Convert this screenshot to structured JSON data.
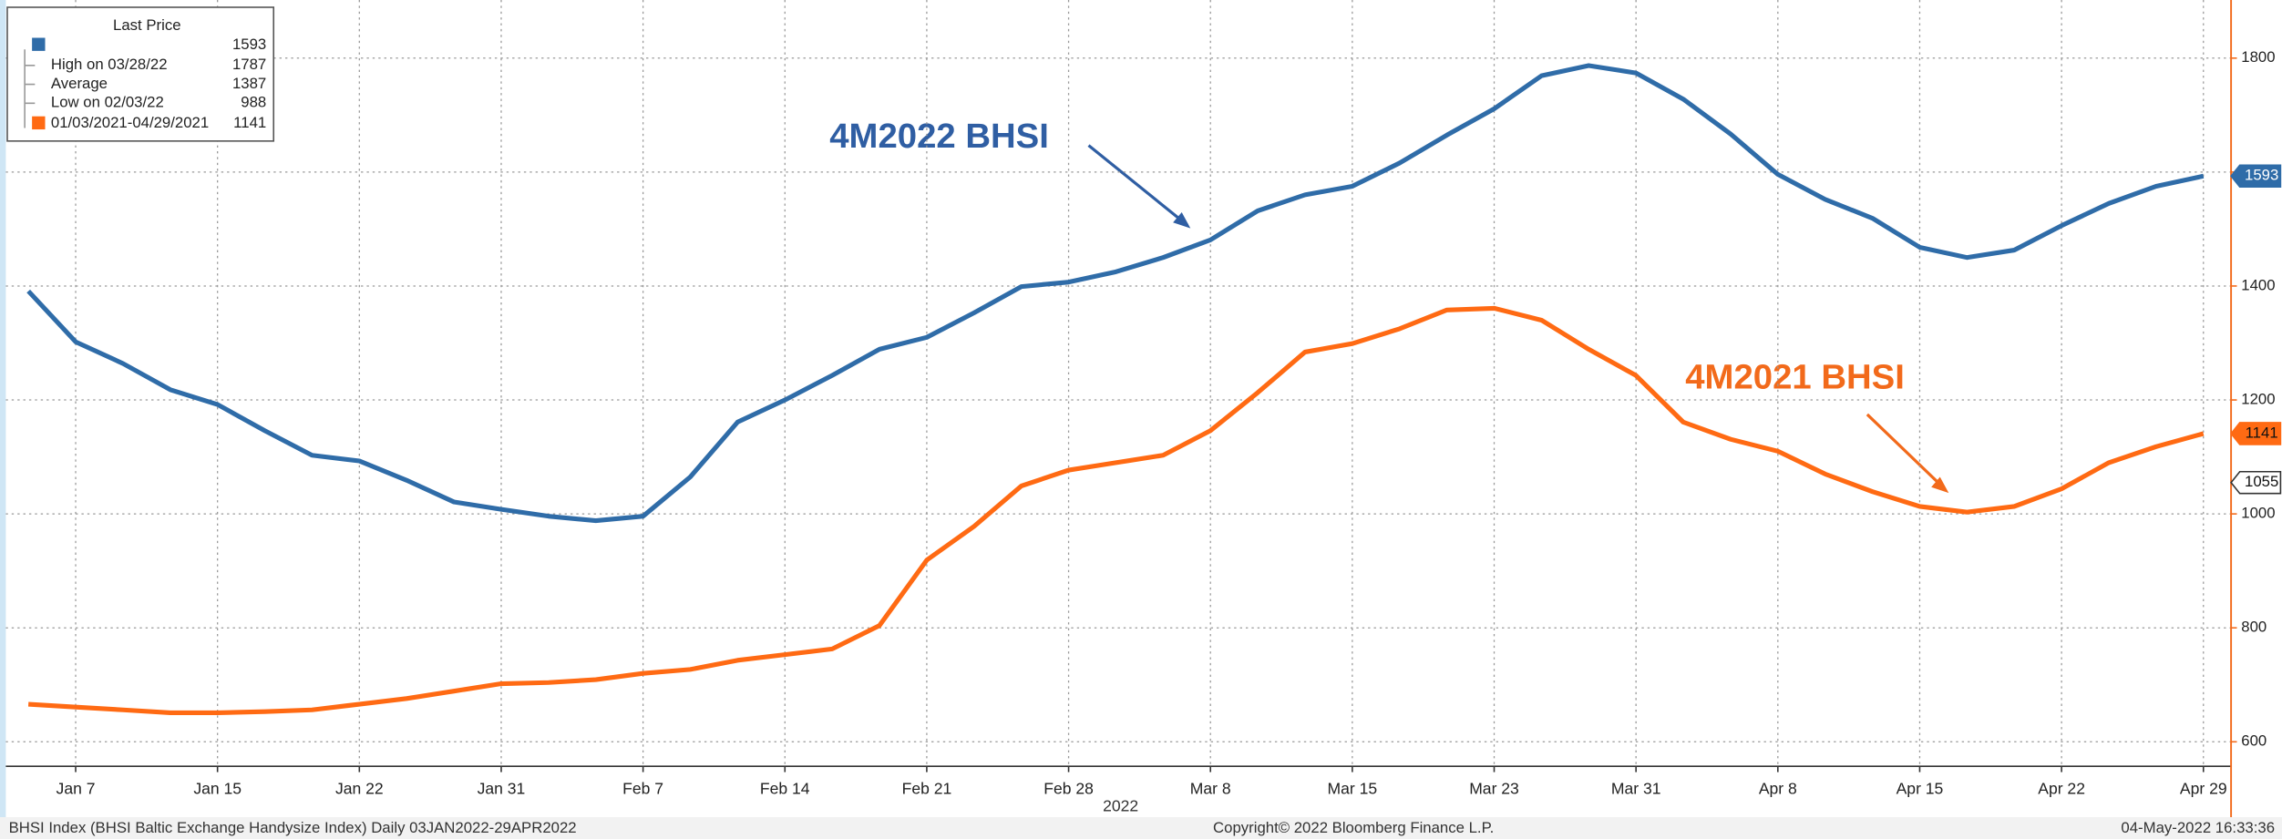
{
  "chart_data": {
    "type": "line",
    "categories": [
      null,
      "Jan 7",
      null,
      null,
      "Jan 15",
      null,
      null,
      "Jan 22",
      null,
      null,
      "Jan 31",
      null,
      null,
      "Feb 7",
      null,
      null,
      "Feb 14",
      null,
      null,
      "Feb 21",
      null,
      null,
      "Feb 28",
      null,
      null,
      "Mar 8",
      null,
      null,
      "Mar 15",
      null,
      null,
      "Mar 23",
      null,
      null,
      "Mar 31",
      null,
      null,
      "Apr 8",
      null,
      null,
      "Apr 15",
      null,
      null,
      "Apr 22",
      null,
      null,
      "Apr 29"
    ],
    "series": [
      {
        "name": "4M2022 BHSI",
        "color": "#2f6ca8",
        "values": [
          1391,
          1302,
          1264,
          1218,
          1192,
          1146,
          1103,
          1093,
          1059,
          1021,
          1008,
          996,
          988,
          996,
          1065,
          1161,
          1200,
          1243,
          1289,
          1310,
          1353,
          1399,
          1407,
          1425,
          1450,
          1481,
          1532,
          1560,
          1575,
          1616,
          1665,
          1711,
          1769,
          1787,
          1774,
          1728,
          1667,
          1596,
          1552,
          1519,
          1468,
          1450,
          1463,
          1506,
          1545,
          1575,
          1593
        ]
      },
      {
        "name": "4M2021 BHSI",
        "color": "#ff6a13",
        "values": [
          666,
          661,
          656,
          651,
          651,
          653,
          656,
          666,
          676,
          689,
          702,
          704,
          709,
          720,
          727,
          743,
          753,
          763,
          804,
          919,
          978,
          1049,
          1077,
          1090,
          1103,
          1146,
          1213,
          1284,
          1299,
          1325,
          1358,
          1361,
          1340,
          1289,
          1243,
          1161,
          1131,
          1110,
          1070,
          1039,
          1013,
          1003,
          1013,
          1044,
          1090,
          1118,
          1141
        ]
      }
    ],
    "ylim": [
      557,
      1902
    ],
    "yticks": [
      600,
      800,
      1000,
      1200,
      1400,
      1600,
      1800
    ],
    "grid": true,
    "y_axis_side": "right",
    "price_tags": [
      1055
    ],
    "year_label": "2022",
    "legend": {
      "title": "Last Price",
      "stats": [
        {
          "label": "High on 03/28/22",
          "value": 1787
        },
        {
          "label": "Average",
          "value": 1387
        },
        {
          "label": "Low on 02/03/22",
          "value": 988
        }
      ],
      "second_label": "01/03/2021-04/29/2021"
    },
    "footer": {
      "left": "BHSI Index (BHSI Baltic Exchange Handysize Index)  Daily 03JAN2022-29APR2022",
      "center": "Copyright© 2022 Bloomberg Finance L.P.",
      "right": "04-May-2022 16:33:36"
    }
  }
}
